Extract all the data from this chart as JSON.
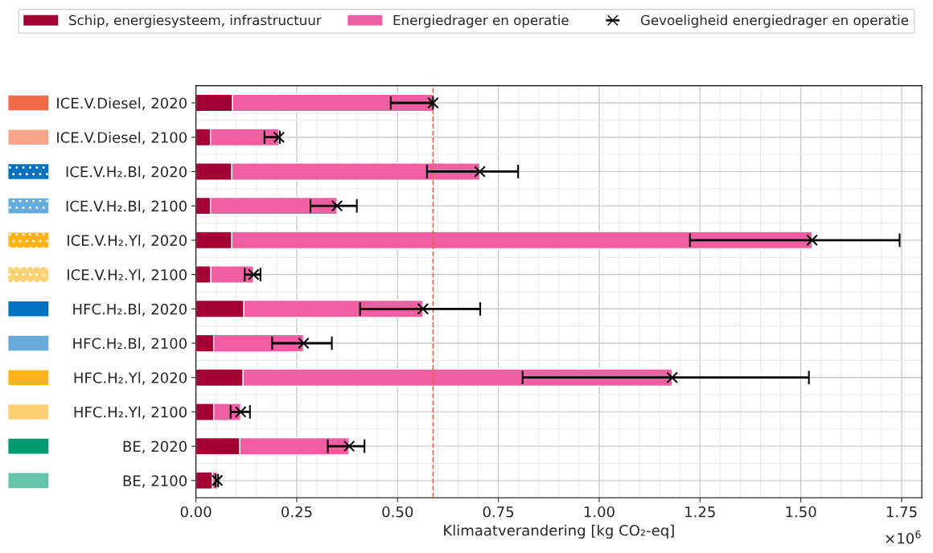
{
  "chart_data": {
    "type": "bar",
    "orientation": "horizontal",
    "stacked": true,
    "xlabel": "Klimaatverandering [kg CO₂-eq]",
    "categories": [
      "ICE.V.Diesel, 2020",
      "ICE.V.Diesel, 2100",
      "ICE.V.H₂.Bl, 2020",
      "ICE.V.H₂.Bl, 2100",
      "ICE.V.H₂.Yl, 2020",
      "ICE.V.H₂.Yl, 2100",
      "HFC.H₂.Bl, 2020",
      "HFC.H₂.Bl, 2100",
      "HFC.H₂.Yl, 2020",
      "HFC.H₂.Yl, 2100",
      "BE, 2020",
      "BE, 2100"
    ],
    "series": [
      {
        "name": "Schip, energiesysteem, infrastructuur",
        "color": "#a50034",
        "values": [
          0.091,
          0.036,
          0.089,
          0.036,
          0.089,
          0.037,
          0.119,
          0.044,
          0.117,
          0.044,
          0.109,
          0.041
        ]
      },
      {
        "name": "Energiedrager en operatie",
        "color": "#ef5fa2",
        "values": [
          0.497,
          0.17,
          0.615,
          0.314,
          1.439,
          0.106,
          0.444,
          0.223,
          1.064,
          0.067,
          0.271,
          0.012
        ]
      },
      {
        "name": "Gevoeligheid energiedrager en operatie",
        "type": "scatter",
        "marker": "cross",
        "color": "#000000",
        "values": [
          0.588,
          0.206,
          0.704,
          0.35,
          1.528,
          0.143,
          0.563,
          0.267,
          1.181,
          0.111,
          0.38,
          0.053
        ],
        "errors": [
          [
            0.483,
            0.588
          ],
          [
            0.17,
            0.208
          ],
          [
            0.573,
            0.799
          ],
          [
            0.284,
            0.399
          ],
          [
            1.225,
            1.745
          ],
          [
            0.121,
            0.16
          ],
          [
            0.407,
            0.705
          ],
          [
            0.189,
            0.337
          ],
          [
            0.81,
            1.52
          ],
          [
            0.086,
            0.134
          ],
          [
            0.327,
            0.418
          ],
          [
            0.049,
            0.055
          ]
        ]
      }
    ],
    "xlim": [
      0,
      1.8
    ],
    "xticks": [
      {
        "value": 0,
        "label": "0.00"
      },
      0.25,
      {
        "value": 0.5,
        "label": "0.50"
      },
      0.75,
      {
        "value": 1,
        "label": "1.00"
      },
      1.25,
      {
        "value": 1.5,
        "label": "1.50"
      },
      1.75
    ],
    "ref_lines": [
      {
        "axis": "x",
        "value": 0.588,
        "color": "#e8694a",
        "line_style": "dashed"
      }
    ],
    "annotations": [
      "×10$^{6}$"
    ],
    "grid": true,
    "legend": "top"
  }
}
